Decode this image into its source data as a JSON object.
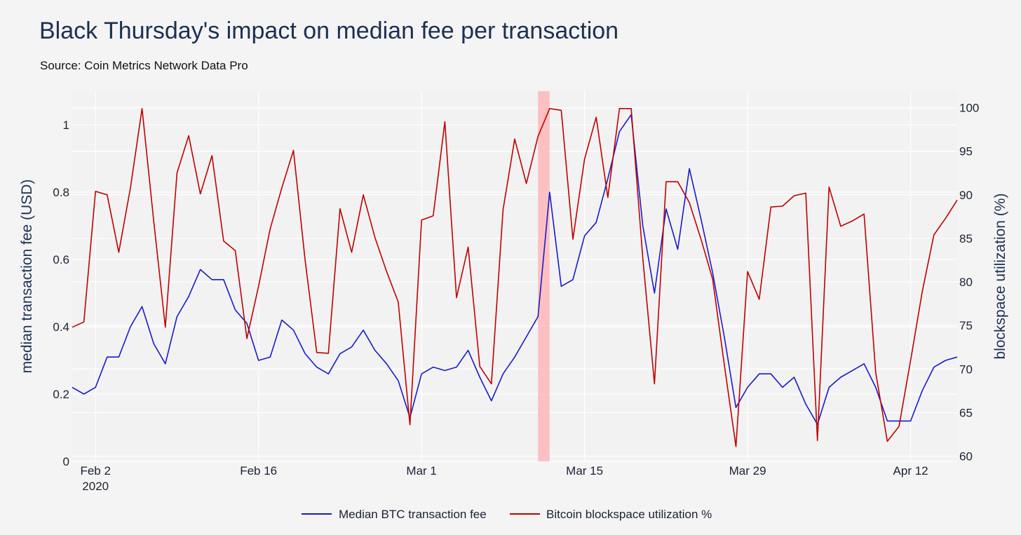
{
  "chart_data": {
    "type": "line",
    "title": "Black Thursday's impact on median fee per transaction",
    "subtitle": "Source: Coin Metrics Network Data Pro",
    "x_axis": {
      "range": [
        "2020-01-31",
        "2020-04-16"
      ],
      "ticks": [
        {
          "date": "2020-02-02",
          "label": "Feb 2",
          "sublabel": "2020"
        },
        {
          "date": "2020-02-16",
          "label": "Feb 16"
        },
        {
          "date": "2020-03-01",
          "label": "Mar 1"
        },
        {
          "date": "2020-03-15",
          "label": "Mar 15"
        },
        {
          "date": "2020-03-29",
          "label": "Mar 29"
        },
        {
          "date": "2020-04-12",
          "label": "Apr 12"
        }
      ]
    },
    "y_left": {
      "label": "median transaction fee (USD)",
      "range": [
        0,
        1.1
      ],
      "ticks": [
        0,
        0.2,
        0.4,
        0.6,
        0.8,
        1
      ],
      "tick_labels": [
        "0",
        "0.2",
        "0.4",
        "0.6",
        "0.8",
        "1"
      ]
    },
    "y_right": {
      "label": "blockspace utilization (%)",
      "range": [
        59.4,
        101.9
      ],
      "ticks": [
        60,
        65,
        70,
        75,
        80,
        85,
        90,
        95,
        100
      ],
      "tick_labels": [
        "60",
        "65",
        "70",
        "75",
        "80",
        "85",
        "90",
        "95",
        "100"
      ]
    },
    "highlight": {
      "start": "2020-03-11",
      "end": "2020-03-12",
      "color": "#ffb3b5"
    },
    "legend_position": "bottom-center",
    "grid": true,
    "series": [
      {
        "name": "Median BTC transaction fee",
        "axis": "left",
        "color": "#1a1acc",
        "x": [
          "2020-01-31",
          "2020-02-01",
          "2020-02-02",
          "2020-02-03",
          "2020-02-04",
          "2020-02-05",
          "2020-02-06",
          "2020-02-07",
          "2020-02-08",
          "2020-02-09",
          "2020-02-10",
          "2020-02-11",
          "2020-02-12",
          "2020-02-13",
          "2020-02-14",
          "2020-02-15",
          "2020-02-16",
          "2020-02-17",
          "2020-02-18",
          "2020-02-19",
          "2020-02-20",
          "2020-02-21",
          "2020-02-22",
          "2020-02-23",
          "2020-02-24",
          "2020-02-25",
          "2020-02-26",
          "2020-02-27",
          "2020-02-28",
          "2020-02-29",
          "2020-03-01",
          "2020-03-02",
          "2020-03-03",
          "2020-03-04",
          "2020-03-05",
          "2020-03-06",
          "2020-03-07",
          "2020-03-08",
          "2020-03-09",
          "2020-03-10",
          "2020-03-11",
          "2020-03-12",
          "2020-03-13",
          "2020-03-14",
          "2020-03-15",
          "2020-03-16",
          "2020-03-17",
          "2020-03-18",
          "2020-03-19",
          "2020-03-20",
          "2020-03-21",
          "2020-03-22",
          "2020-03-23",
          "2020-03-24",
          "2020-03-25",
          "2020-03-26",
          "2020-03-27",
          "2020-03-28",
          "2020-03-29",
          "2020-03-30",
          "2020-03-31",
          "2020-04-01",
          "2020-04-02",
          "2020-04-03",
          "2020-04-04",
          "2020-04-05",
          "2020-04-06",
          "2020-04-07",
          "2020-04-08",
          "2020-04-09",
          "2020-04-10",
          "2020-04-11",
          "2020-04-12",
          "2020-04-13",
          "2020-04-14",
          "2020-04-15",
          "2020-04-16"
        ],
        "values": [
          0.22,
          0.2,
          0.22,
          0.31,
          0.31,
          0.4,
          0.46,
          0.35,
          0.29,
          0.43,
          0.49,
          0.57,
          0.54,
          0.54,
          0.45,
          0.41,
          0.3,
          0.31,
          0.42,
          0.39,
          0.32,
          0.28,
          0.26,
          0.32,
          0.34,
          0.39,
          0.33,
          0.29,
          0.24,
          0.13,
          0.26,
          0.28,
          0.27,
          0.28,
          0.33,
          0.25,
          0.18,
          0.26,
          0.31,
          0.37,
          0.43,
          0.8,
          0.52,
          0.54,
          0.67,
          0.71,
          0.84,
          0.98,
          1.03,
          0.7,
          0.5,
          0.75,
          0.63,
          0.87,
          0.72,
          0.56,
          0.37,
          0.16,
          0.22,
          0.26,
          0.26,
          0.22,
          0.25,
          0.17,
          0.11,
          0.22,
          0.25,
          0.27,
          0.29,
          0.22,
          0.12,
          0.12,
          0.12,
          0.21,
          0.28,
          0.3,
          0.31
        ]
      },
      {
        "name": "Bitcoin blockspace utilization %",
        "axis": "right",
        "color": "#c00000",
        "x": [
          "2020-01-31",
          "2020-02-01",
          "2020-02-02",
          "2020-02-03",
          "2020-02-04",
          "2020-02-05",
          "2020-02-06",
          "2020-02-07",
          "2020-02-08",
          "2020-02-09",
          "2020-02-10",
          "2020-02-11",
          "2020-02-12",
          "2020-02-13",
          "2020-02-14",
          "2020-02-15",
          "2020-02-16",
          "2020-02-17",
          "2020-02-18",
          "2020-02-19",
          "2020-02-20",
          "2020-02-21",
          "2020-02-22",
          "2020-02-23",
          "2020-02-24",
          "2020-02-25",
          "2020-02-26",
          "2020-02-27",
          "2020-02-28",
          "2020-02-29",
          "2020-03-01",
          "2020-03-02",
          "2020-03-03",
          "2020-03-04",
          "2020-03-05",
          "2020-03-06",
          "2020-03-07",
          "2020-03-08",
          "2020-03-09",
          "2020-03-10",
          "2020-03-11",
          "2020-03-12",
          "2020-03-13",
          "2020-03-14",
          "2020-03-15",
          "2020-03-16",
          "2020-03-17",
          "2020-03-18",
          "2020-03-19",
          "2020-03-20",
          "2020-03-21",
          "2020-03-22",
          "2020-03-23",
          "2020-03-24",
          "2020-03-25",
          "2020-03-26",
          "2020-03-27",
          "2020-03-28",
          "2020-03-29",
          "2020-03-30",
          "2020-03-31",
          "2020-04-01",
          "2020-04-02",
          "2020-04-03",
          "2020-04-04",
          "2020-04-05",
          "2020-04-06",
          "2020-04-07",
          "2020-04-08",
          "2020-04-09",
          "2020-04-10",
          "2020-04-11",
          "2020-04-12",
          "2020-04-13",
          "2020-04-14",
          "2020-04-15",
          "2020-04-16"
        ],
        "values": [
          74.8,
          75.4,
          90.4,
          90.0,
          83.4,
          90.8,
          99.9,
          87.0,
          74.8,
          92.5,
          96.8,
          90.1,
          94.5,
          84.7,
          83.6,
          73.5,
          79.5,
          86.1,
          90.8,
          95.1,
          82.5,
          71.9,
          71.8,
          88.4,
          83.4,
          90.0,
          85.1,
          81.2,
          77.7,
          63.6,
          87.1,
          87.6,
          98.4,
          78.2,
          84.0,
          70.3,
          68.3,
          88.3,
          96.4,
          91.3,
          96.7,
          99.9,
          99.7,
          84.9,
          94.1,
          98.9,
          89.7,
          99.9,
          99.9,
          82.7,
          68.3,
          91.5,
          91.5,
          89.1,
          84.9,
          80.3,
          70.5,
          61.1,
          81.2,
          78.0,
          88.6,
          88.7,
          89.9,
          90.2,
          61.8,
          90.9,
          86.4,
          87.0,
          87.8,
          69.6,
          61.7,
          63.4,
          71.0,
          78.9,
          85.4,
          87.3,
          89.4
        ]
      }
    ]
  }
}
